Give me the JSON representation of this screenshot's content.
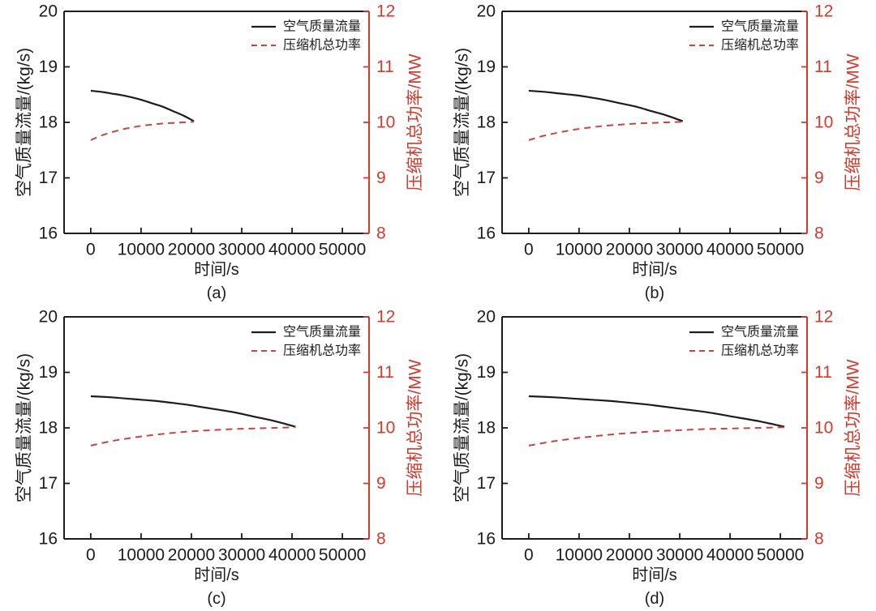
{
  "figure": {
    "background": "#ffffff",
    "rows": 2,
    "cols": 2
  },
  "colors": {
    "flow_line": "#1c1c1c",
    "power_line": "#c4463e",
    "power_axis": "#d23a2c",
    "frame": "#1c1c1c"
  },
  "legend": {
    "flow_label": "空气质量流量",
    "power_label": "压缩机总功率"
  },
  "chart_data": [
    {
      "type": "line",
      "caption": "(a)",
      "xlabel": "时间/s",
      "ylabel_left": "空气质量流量/(kg/s)",
      "ylabel_right": "压缩机总功率/MW",
      "xlim": [
        -5300,
        55300
      ],
      "ylim_left": [
        16,
        20
      ],
      "ylim_right": [
        8,
        12
      ],
      "x_ticks": [
        0,
        10000,
        20000,
        30000,
        40000,
        50000
      ],
      "y_ticks_left": [
        16,
        17,
        18,
        19,
        20
      ],
      "y_ticks_right": [
        8,
        9,
        10,
        11,
        12
      ],
      "legend_position": "top-right",
      "series": [
        {
          "name": "空气质量流量",
          "axis": "left",
          "line": "solid",
          "color": "#1c1c1c",
          "x": [
            0,
            2050,
            4100,
            6150,
            8200,
            10250,
            12300,
            14350,
            16400,
            18450,
            20500
          ],
          "y": [
            18.57,
            18.55,
            18.52,
            18.49,
            18.45,
            18.4,
            18.34,
            18.28,
            18.2,
            18.12,
            18.02
          ]
        },
        {
          "name": "压缩机总功率",
          "axis": "right",
          "line": "dashed",
          "color": "#c4463e",
          "x": [
            0,
            2050,
            4100,
            6150,
            8200,
            10250,
            12300,
            14350,
            16400,
            18450,
            20500
          ],
          "y": [
            9.68,
            9.76,
            9.82,
            9.87,
            9.91,
            9.94,
            9.96,
            9.98,
            9.99,
            10.0,
            10.01
          ]
        }
      ]
    },
    {
      "type": "line",
      "caption": "(b)",
      "xlabel": "时间/s",
      "ylabel_left": "空气质量流量/(kg/s)",
      "ylabel_right": "压缩机总功率/MW",
      "xlim": [
        -5300,
        55300
      ],
      "ylim_left": [
        16,
        20
      ],
      "ylim_right": [
        8,
        12
      ],
      "x_ticks": [
        0,
        10000,
        20000,
        30000,
        40000,
        50000
      ],
      "y_ticks_left": [
        16,
        17,
        18,
        19,
        20
      ],
      "y_ticks_right": [
        8,
        9,
        10,
        11,
        12
      ],
      "legend_position": "top-right",
      "series": [
        {
          "name": "空气质量流量",
          "axis": "left",
          "line": "solid",
          "color": "#1c1c1c",
          "x": [
            0,
            3060,
            6120,
            9180,
            12240,
            15300,
            18360,
            21420,
            24480,
            27540,
            30600
          ],
          "y": [
            18.57,
            18.55,
            18.52,
            18.49,
            18.45,
            18.4,
            18.34,
            18.28,
            18.2,
            18.12,
            18.02
          ]
        },
        {
          "name": "压缩机总功率",
          "axis": "right",
          "line": "dashed",
          "color": "#c4463e",
          "x": [
            0,
            3060,
            6120,
            9180,
            12240,
            15300,
            18360,
            21420,
            24480,
            27540,
            30600
          ],
          "y": [
            9.68,
            9.76,
            9.82,
            9.87,
            9.91,
            9.94,
            9.96,
            9.98,
            9.99,
            10.0,
            10.01
          ]
        }
      ]
    },
    {
      "type": "line",
      "caption": "(c)",
      "xlabel": "时间/s",
      "ylabel_left": "空气质量流量/(kg/s)",
      "ylabel_right": "压缩机总功率/MW",
      "xlim": [
        -5300,
        55300
      ],
      "ylim_left": [
        16,
        20
      ],
      "ylim_right": [
        8,
        12
      ],
      "x_ticks": [
        0,
        10000,
        20000,
        30000,
        40000,
        50000
      ],
      "y_ticks_left": [
        16,
        17,
        18,
        19,
        20
      ],
      "y_ticks_right": [
        8,
        9,
        10,
        11,
        12
      ],
      "legend_position": "top-right",
      "series": [
        {
          "name": "空气质量流量",
          "axis": "left",
          "line": "solid",
          "color": "#1c1c1c",
          "x": [
            0,
            4070,
            8140,
            12210,
            16280,
            20350,
            24420,
            28490,
            32560,
            36630,
            40700
          ],
          "y": [
            18.57,
            18.55,
            18.52,
            18.49,
            18.45,
            18.4,
            18.34,
            18.28,
            18.2,
            18.12,
            18.02
          ]
        },
        {
          "name": "压缩机总功率",
          "axis": "right",
          "line": "dashed",
          "color": "#c4463e",
          "x": [
            0,
            4070,
            8140,
            12210,
            16280,
            20350,
            24420,
            28490,
            32560,
            36630,
            40700
          ],
          "y": [
            9.68,
            9.76,
            9.82,
            9.87,
            9.91,
            9.94,
            9.96,
            9.98,
            9.99,
            10.0,
            10.01
          ]
        }
      ]
    },
    {
      "type": "line",
      "caption": "(d)",
      "xlabel": "时间/s",
      "ylabel_left": "空气质量流量/(kg/s)",
      "ylabel_right": "压缩机总功率/MW",
      "xlim": [
        -5300,
        55300
      ],
      "ylim_left": [
        16,
        20
      ],
      "ylim_right": [
        8,
        12
      ],
      "x_ticks": [
        0,
        10000,
        20000,
        30000,
        40000,
        50000
      ],
      "y_ticks_left": [
        16,
        17,
        18,
        19,
        20
      ],
      "y_ticks_right": [
        8,
        9,
        10,
        11,
        12
      ],
      "legend_position": "top-right",
      "series": [
        {
          "name": "空气质量流量",
          "axis": "left",
          "line": "solid",
          "color": "#1c1c1c",
          "x": [
            0,
            5080,
            10160,
            15240,
            20320,
            25400,
            30480,
            35560,
            40640,
            45720,
            50800
          ],
          "y": [
            18.57,
            18.55,
            18.52,
            18.49,
            18.45,
            18.4,
            18.34,
            18.28,
            18.2,
            18.12,
            18.02
          ]
        },
        {
          "name": "压缩机总功率",
          "axis": "right",
          "line": "dashed",
          "color": "#c4463e",
          "x": [
            0,
            5080,
            10160,
            15240,
            20320,
            25400,
            30480,
            35560,
            40640,
            45720,
            50800
          ],
          "y": [
            9.68,
            9.76,
            9.82,
            9.87,
            9.91,
            9.94,
            9.96,
            9.98,
            9.99,
            10.0,
            10.01
          ]
        }
      ]
    }
  ]
}
